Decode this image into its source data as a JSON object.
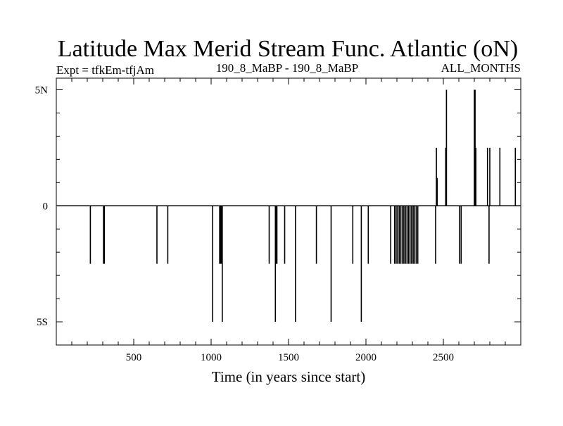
{
  "chart_data": {
    "type": "line",
    "title": "Latitude Max Merid Stream Func. Atlantic (oN)",
    "subtitle_left": "Expt = tfkEm-tfjAm",
    "subtitle_center": "190_8_MaBP - 190_8_MaBP",
    "subtitle_right": "ALL_MONTHS",
    "xlabel": "Time (in years since start)",
    "ylabel": "",
    "xlim": [
      0,
      3000
    ],
    "ylim": [
      -6,
      5.5
    ],
    "xticks": [
      500,
      1000,
      1500,
      2000,
      2500
    ],
    "xtick_labels": [
      "500",
      "1000",
      "1500",
      "2000",
      "2500"
    ],
    "yticks": [
      5,
      0,
      -5
    ],
    "ytick_labels": [
      "5N",
      "0",
      "5S"
    ],
    "baseline": 0,
    "spikes": [
      {
        "x": 220,
        "y": -2.5
      },
      {
        "x": 305,
        "y": -2.5
      },
      {
        "x": 310,
        "y": -2.5
      },
      {
        "x": 650,
        "y": -2.5
      },
      {
        "x": 720,
        "y": -2.5
      },
      {
        "x": 1010,
        "y": -5
      },
      {
        "x": 1055,
        "y": -2.5
      },
      {
        "x": 1062,
        "y": -2.5
      },
      {
        "x": 1068,
        "y": -2.5
      },
      {
        "x": 1072,
        "y": -5
      },
      {
        "x": 1375,
        "y": -2.5
      },
      {
        "x": 1415,
        "y": -5
      },
      {
        "x": 1420,
        "y": -2.5
      },
      {
        "x": 1425,
        "y": -2.5
      },
      {
        "x": 1475,
        "y": -2.5
      },
      {
        "x": 1545,
        "y": -5
      },
      {
        "x": 1680,
        "y": -2.5
      },
      {
        "x": 1775,
        "y": -5
      },
      {
        "x": 1915,
        "y": -2.5
      },
      {
        "x": 1970,
        "y": -5
      },
      {
        "x": 2015,
        "y": -2.5
      },
      {
        "x": 2160,
        "y": -2.5
      },
      {
        "x": 2185,
        "y": -2.5
      },
      {
        "x": 2195,
        "y": -2.5
      },
      {
        "x": 2205,
        "y": -2.5
      },
      {
        "x": 2215,
        "y": -2.5
      },
      {
        "x": 2225,
        "y": -2.5
      },
      {
        "x": 2235,
        "y": -2.5
      },
      {
        "x": 2245,
        "y": -2.5
      },
      {
        "x": 2255,
        "y": -2.5
      },
      {
        "x": 2265,
        "y": -2.5
      },
      {
        "x": 2275,
        "y": -2.5
      },
      {
        "x": 2285,
        "y": -2.5
      },
      {
        "x": 2295,
        "y": -2.5
      },
      {
        "x": 2305,
        "y": -2.5
      },
      {
        "x": 2315,
        "y": -2.5
      },
      {
        "x": 2325,
        "y": -2.5
      },
      {
        "x": 2335,
        "y": -2.5
      },
      {
        "x": 2450,
        "y": -2.5
      },
      {
        "x": 2455,
        "y": 2.5
      },
      {
        "x": 2460,
        "y": 1.2
      },
      {
        "x": 2515,
        "y": 2.5
      },
      {
        "x": 2520,
        "y": 5
      },
      {
        "x": 2605,
        "y": -2.5
      },
      {
        "x": 2615,
        "y": -2.5
      },
      {
        "x": 2700,
        "y": 5
      },
      {
        "x": 2705,
        "y": 5
      },
      {
        "x": 2710,
        "y": 2.5
      },
      {
        "x": 2785,
        "y": 2.5
      },
      {
        "x": 2795,
        "y": -2.5
      },
      {
        "x": 2800,
        "y": 2.5
      },
      {
        "x": 2865,
        "y": 2.5
      },
      {
        "x": 2965,
        "y": 2.5
      }
    ]
  }
}
